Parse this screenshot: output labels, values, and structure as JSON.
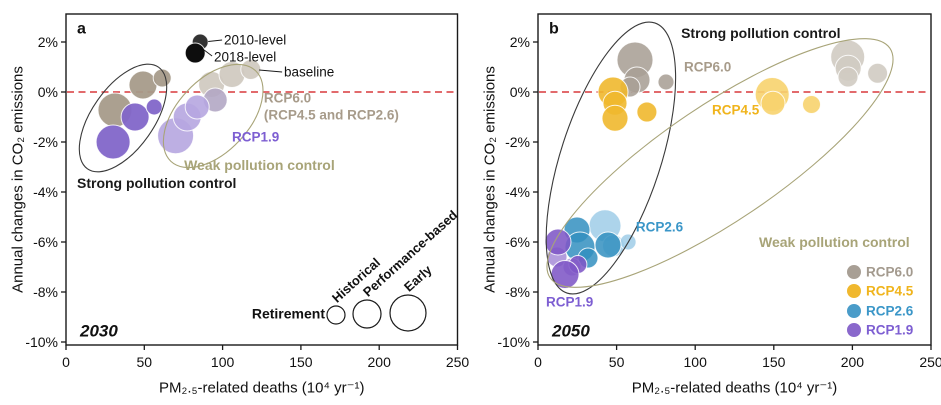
{
  "figure": {
    "background": "#ffffff",
    "zero_line_color": "#d8393c",
    "frame_color": "#1a1a1a"
  },
  "chart_data": [
    {
      "type": "bubble",
      "panel_letter": "a",
      "year_label": "2030",
      "xlabel": "PM₂.₅-related deaths (10⁴ yr⁻¹)",
      "ylabel": "Annual changes in CO₂ emissions",
      "xlim": [
        0,
        250
      ],
      "ylim": [
        -10,
        2
      ],
      "xticks": [
        0,
        50,
        100,
        150,
        200,
        250
      ],
      "xtick_labels": [
        "0",
        "50",
        "100",
        "150",
        "200",
        "250"
      ],
      "yticks": [
        2,
        0,
        -2,
        -4,
        -6,
        -8,
        -10
      ],
      "ytick_labels": [
        "2%",
        "0%",
        "-2%",
        "-4%",
        "-6%",
        "-8%",
        "-10%"
      ],
      "zero_line_y": 0,
      "grid": false,
      "groups": [
        {
          "name": "baseline-weak-tan",
          "label": "RCP6.0 (RCP4.5 and RCP2.6) weak control",
          "color": "#cfc9bf",
          "opacity": 0.92,
          "points": [
            {
              "x": 93,
              "y": 0.3,
              "r": 13
            },
            {
              "x": 106,
              "y": 0.7,
              "r": 13
            },
            {
              "x": 118,
              "y": 0.9,
              "r": 10
            }
          ]
        },
        {
          "name": "weak-gray-lavender",
          "label": "weak control overlap",
          "color": "#b3a7c4",
          "opacity": 0.9,
          "points": [
            {
              "x": 95.3,
              "y": -0.32,
              "r": 12
            }
          ]
        },
        {
          "name": "rcp1.9-weak",
          "label": "RCP1.9 weak control",
          "color": "#b6a6e0",
          "opacity": 0.9,
          "points": [
            {
              "x": 70,
              "y": -1.75,
              "r": 18
            },
            {
              "x": 77.4,
              "y": -1.0,
              "r": 14
            },
            {
              "x": 83.8,
              "y": -0.6,
              "r": 12
            }
          ]
        },
        {
          "name": "rcp6.0-strong",
          "label": "RCP6.0 strong control",
          "color": "#a79b8a",
          "opacity": 0.95,
          "points": [
            {
              "x": 31.3,
              "y": -0.72,
              "r": 17
            },
            {
              "x": 49.2,
              "y": 0.28,
              "r": 14
            },
            {
              "x": 61.4,
              "y": 0.56,
              "r": 9
            }
          ]
        },
        {
          "name": "rcp1.9-strong",
          "label": "RCP1.9 strong control",
          "color": "#8266c9",
          "opacity": 0.95,
          "points": [
            {
              "x": 30.1,
              "y": -2.0,
              "r": 17
            },
            {
              "x": 44.1,
              "y": -1.0,
              "r": 14
            },
            {
              "x": 56.3,
              "y": -0.6,
              "r": 8
            }
          ]
        },
        {
          "name": "level-2010",
          "label": "2010-level",
          "color": "#333333",
          "opacity": 1,
          "points": [
            {
              "x": 85.7,
              "y": 2.0,
              "r": 8
            }
          ]
        },
        {
          "name": "level-2018",
          "label": "2018-level",
          "color": "#0d0d0d",
          "opacity": 1,
          "points": [
            {
              "x": 82.5,
              "y": 1.56,
              "r": 10
            }
          ]
        }
      ],
      "ellipses": [
        {
          "name": "strong-pollution-control",
          "cx": 36.4,
          "cy": -1.04,
          "rx": 62,
          "ry": 31,
          "rot": -55,
          "color": "#3a3a3a"
        },
        {
          "name": "weak-pollution-control",
          "cx": 94,
          "cy": -0.96,
          "rx": 62,
          "ry": 36,
          "rot": -47,
          "color": "#a8a478"
        }
      ],
      "leaders": [
        {
          "x1": 90.8,
          "y1": 2.02,
          "x2": 99.7,
          "y2": 2.08
        },
        {
          "x1": 88.2,
          "y1": 1.68,
          "x2": 93.3,
          "y2": 1.44
        },
        {
          "x1": 123.3,
          "y1": 0.88,
          "x2": 138,
          "y2": 0.8
        }
      ],
      "annotations": [
        {
          "text": "2010-level",
          "x": 100.9,
          "y": 2.08,
          "color": "#111111",
          "bold": false,
          "size": 13.5
        },
        {
          "text": "2018-level",
          "x": 94.5,
          "y": 1.4,
          "color": "#111111",
          "bold": false,
          "size": 13.5
        },
        {
          "text": "baseline",
          "x": 139.2,
          "y": 0.8,
          "color": "#111111",
          "bold": false,
          "size": 13.5
        },
        {
          "text": "RCP6.0",
          "x": 126.4,
          "y": -0.24,
          "color": "#a79b8a",
          "bold": true,
          "size": 13.5
        },
        {
          "text": "(RCP4.5 and RCP2.6)",
          "x": 126.4,
          "y": -0.92,
          "color": "#a79b8a",
          "bold": true,
          "size": 13.5
        },
        {
          "text": "RCP1.9",
          "x": 106,
          "y": -1.8,
          "color": "#7d5ed2",
          "bold": true,
          "size": 13.5
        },
        {
          "text": "Weak pollution control",
          "x": 75.4,
          "y": -2.92,
          "color": "#a8a478",
          "bold": true,
          "size": 14
        },
        {
          "text": "Strong pollution control",
          "x": 7.0,
          "y": -3.64,
          "color": "#1a1a1a",
          "bold": true,
          "size": 14
        }
      ],
      "size_legend": {
        "title": "Retirement",
        "title_x": 165.4,
        "title_y": -8.85,
        "items": [
          {
            "label": "Historical",
            "x": 172.4,
            "y": -8.92,
            "r": 9
          },
          {
            "label": "Performance-based",
            "x": 192.2,
            "y": -8.88,
            "r": 14
          },
          {
            "label": "Early",
            "x": 218.4,
            "y": -8.84,
            "r": 18
          }
        ]
      }
    },
    {
      "type": "bubble",
      "panel_letter": "b",
      "year_label": "2050",
      "xlabel": "PM₂.₅-related deaths (10⁴ yr⁻¹)",
      "ylabel": "Annual changes in CO₂ emissions",
      "xlim": [
        0,
        250
      ],
      "ylim": [
        -10,
        2
      ],
      "xticks": [
        0,
        50,
        100,
        150,
        200,
        250
      ],
      "xtick_labels": [
        "0",
        "50",
        "100",
        "150",
        "200",
        "250"
      ],
      "yticks": [
        2,
        0,
        -2,
        -4,
        -6,
        -8,
        -10
      ],
      "ytick_labels": [
        "2%",
        "0%",
        "-2%",
        "-4%",
        "-6%",
        "-8%",
        "-10%"
      ],
      "zero_line_y": 0,
      "grid": false,
      "groups": [
        {
          "name": "rcp6.0-strong",
          "label": "RCP6.0 strong control",
          "color": "#a89f95",
          "opacity": 0.88,
          "points": [
            {
              "x": 61.7,
              "y": 1.28,
              "r": 18
            },
            {
              "x": 63,
              "y": 0.48,
              "r": 13
            },
            {
              "x": 58.5,
              "y": 0.2,
              "r": 10
            },
            {
              "x": 81.4,
              "y": 0.4,
              "r": 8
            }
          ]
        },
        {
          "name": "rcp4.5-strong",
          "label": "RCP4.5 strong control",
          "color": "#f0b82e",
          "opacity": 0.9,
          "points": [
            {
              "x": 47.7,
              "y": 0.0,
              "r": 15
            },
            {
              "x": 49,
              "y": -0.45,
              "r": 12
            },
            {
              "x": 49,
              "y": -1.05,
              "r": 13
            },
            {
              "x": 69.3,
              "y": -0.8,
              "r": 10
            }
          ]
        },
        {
          "name": "rcp6.0-weak",
          "label": "RCP6.0 weak control",
          "color": "#d0cbc2",
          "opacity": 0.9,
          "points": [
            {
              "x": 197,
              "y": 1.4,
              "r": 17
            },
            {
              "x": 197.3,
              "y": 0.95,
              "r": 13
            },
            {
              "x": 197.2,
              "y": 0.6,
              "r": 10
            },
            {
              "x": 216,
              "y": 0.75,
              "r": 10
            }
          ]
        },
        {
          "name": "rcp4.5-weak",
          "label": "RCP4.5 weak control",
          "color": "#f7d36e",
          "opacity": 0.9,
          "points": [
            {
              "x": 149,
              "y": -0.1,
              "r": 17
            },
            {
              "x": 149.5,
              "y": -0.45,
              "r": 12
            },
            {
              "x": 174,
              "y": -0.5,
              "r": 9
            }
          ]
        },
        {
          "name": "rcp2.6-light",
          "label": "RCP2.6",
          "color": "#9fcde8",
          "opacity": 0.85,
          "points": [
            {
              "x": 42.6,
              "y": -5.35,
              "r": 16
            },
            {
              "x": 48,
              "y": -6.15,
              "r": 11
            },
            {
              "x": 57.3,
              "y": -6.0,
              "r": 8
            }
          ]
        },
        {
          "name": "rcp2.6",
          "label": "RCP2.6",
          "color": "#338fc0",
          "opacity": 0.85,
          "points": [
            {
              "x": 24.8,
              "y": -5.52,
              "r": 13
            },
            {
              "x": 26.7,
              "y": -6.2,
              "r": 15
            },
            {
              "x": 31.8,
              "y": -6.64,
              "r": 10
            },
            {
              "x": 44.5,
              "y": -6.12,
              "r": 13
            }
          ]
        },
        {
          "name": "rcp1.9-light",
          "label": "RCP1.9",
          "color": "#a88fd8",
          "opacity": 0.88,
          "points": [
            {
              "x": 12.1,
              "y": -6.6,
              "r": 10
            },
            {
              "x": 21.6,
              "y": -7.0,
              "r": 9
            }
          ]
        },
        {
          "name": "rcp1.9",
          "label": "RCP1.9",
          "color": "#7e57c6",
          "opacity": 0.88,
          "points": [
            {
              "x": 12.7,
              "y": -6.0,
              "r": 13
            },
            {
              "x": 25.4,
              "y": -6.9,
              "r": 9
            },
            {
              "x": 17.2,
              "y": -7.3,
              "r": 14
            }
          ]
        }
      ],
      "ellipses": [
        {
          "name": "strong-pollution-control",
          "cx": 46.4,
          "cy": -2.64,
          "rx": 142,
          "ry": 50,
          "rot": -72,
          "color": "#3a3a3a"
        },
        {
          "name": "weak-pollution-control",
          "cx": 115.8,
          "cy": -2.84,
          "rx": 205,
          "ry": 58,
          "rot": -34,
          "color": "#a8a478"
        }
      ],
      "leaders": [],
      "annotations": [
        {
          "text": "Strong pollution control",
          "x": 91,
          "y": 2.36,
          "color": "#1a1a1a",
          "bold": true,
          "size": 14
        },
        {
          "text": "RCP6.0",
          "x": 92.9,
          "y": 1.0,
          "color": "#a79b8a",
          "bold": true,
          "size": 13.5
        },
        {
          "text": "RCP4.5",
          "x": 110.7,
          "y": -0.72,
          "color": "#f0b41c",
          "bold": true,
          "size": 13.5
        },
        {
          "text": "RCP2.6",
          "x": 62.3,
          "y": -5.4,
          "color": "#3a96c8",
          "bold": true,
          "size": 13.5
        },
        {
          "text": "RCP1.9",
          "x": 5.1,
          "y": -8.4,
          "color": "#7d5ed2",
          "bold": true,
          "size": 13.5
        },
        {
          "text": "Weak pollution control",
          "x": 140.6,
          "y": -6.0,
          "color": "#a8a478",
          "bold": true,
          "size": 14
        }
      ],
      "legend": {
        "x": 201,
        "rows": [
          {
            "label": "RCP6.0",
            "color": "#a89f95",
            "text_color": "#a39a8e",
            "y": -7.2
          },
          {
            "label": "RCP4.5",
            "color": "#f0b82e",
            "text_color": "#f0b41c",
            "y": -7.96
          },
          {
            "label": "RCP2.6",
            "color": "#4a9cc9",
            "text_color": "#3a96c8",
            "y": -8.76
          },
          {
            "label": "RCP1.9",
            "color": "#8a68cc",
            "text_color": "#7d5ed2",
            "y": -9.52
          }
        ]
      }
    }
  ]
}
